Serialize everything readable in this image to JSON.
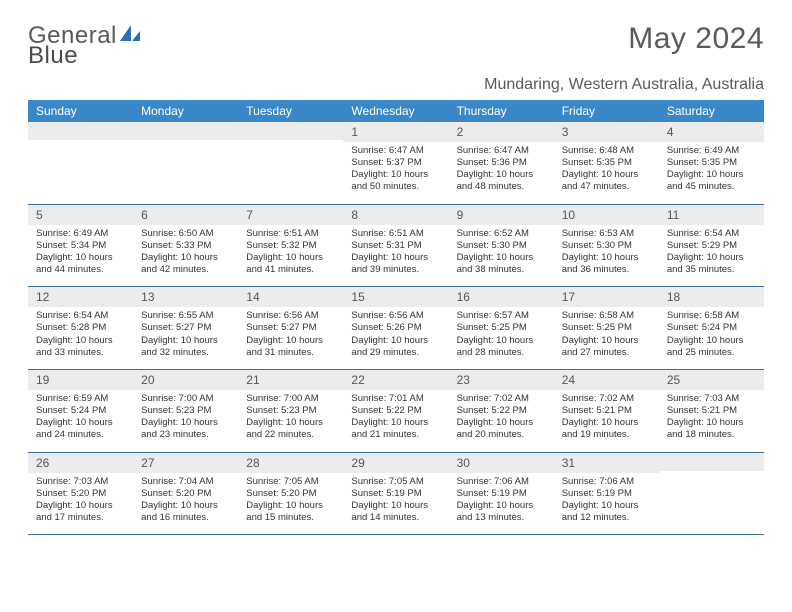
{
  "logo": {
    "word1": "General",
    "word2": "Blue"
  },
  "title": "May 2024",
  "location": "Mundaring, Western Australia, Australia",
  "colors": {
    "dow_bg": "#3a87c8",
    "dow_fg": "#ffffff",
    "daynum_bg": "#ececec",
    "row_border": "#3a6fa0",
    "text": "#333333",
    "heading": "#5a5a5a"
  },
  "day_labels": [
    "Sunday",
    "Monday",
    "Tuesday",
    "Wednesday",
    "Thursday",
    "Friday",
    "Saturday"
  ],
  "weeks": [
    [
      {
        "n": "",
        "lines": []
      },
      {
        "n": "",
        "lines": []
      },
      {
        "n": "",
        "lines": []
      },
      {
        "n": "1",
        "lines": [
          "Sunrise: 6:47 AM",
          "Sunset: 5:37 PM",
          "Daylight: 10 hours",
          "and 50 minutes."
        ]
      },
      {
        "n": "2",
        "lines": [
          "Sunrise: 6:47 AM",
          "Sunset: 5:36 PM",
          "Daylight: 10 hours",
          "and 48 minutes."
        ]
      },
      {
        "n": "3",
        "lines": [
          "Sunrise: 6:48 AM",
          "Sunset: 5:35 PM",
          "Daylight: 10 hours",
          "and 47 minutes."
        ]
      },
      {
        "n": "4",
        "lines": [
          "Sunrise: 6:49 AM",
          "Sunset: 5:35 PM",
          "Daylight: 10 hours",
          "and 45 minutes."
        ]
      }
    ],
    [
      {
        "n": "5",
        "lines": [
          "Sunrise: 6:49 AM",
          "Sunset: 5:34 PM",
          "Daylight: 10 hours",
          "and 44 minutes."
        ]
      },
      {
        "n": "6",
        "lines": [
          "Sunrise: 6:50 AM",
          "Sunset: 5:33 PM",
          "Daylight: 10 hours",
          "and 42 minutes."
        ]
      },
      {
        "n": "7",
        "lines": [
          "Sunrise: 6:51 AM",
          "Sunset: 5:32 PM",
          "Daylight: 10 hours",
          "and 41 minutes."
        ]
      },
      {
        "n": "8",
        "lines": [
          "Sunrise: 6:51 AM",
          "Sunset: 5:31 PM",
          "Daylight: 10 hours",
          "and 39 minutes."
        ]
      },
      {
        "n": "9",
        "lines": [
          "Sunrise: 6:52 AM",
          "Sunset: 5:30 PM",
          "Daylight: 10 hours",
          "and 38 minutes."
        ]
      },
      {
        "n": "10",
        "lines": [
          "Sunrise: 6:53 AM",
          "Sunset: 5:30 PM",
          "Daylight: 10 hours",
          "and 36 minutes."
        ]
      },
      {
        "n": "11",
        "lines": [
          "Sunrise: 6:54 AM",
          "Sunset: 5:29 PM",
          "Daylight: 10 hours",
          "and 35 minutes."
        ]
      }
    ],
    [
      {
        "n": "12",
        "lines": [
          "Sunrise: 6:54 AM",
          "Sunset: 5:28 PM",
          "Daylight: 10 hours",
          "and 33 minutes."
        ]
      },
      {
        "n": "13",
        "lines": [
          "Sunrise: 6:55 AM",
          "Sunset: 5:27 PM",
          "Daylight: 10 hours",
          "and 32 minutes."
        ]
      },
      {
        "n": "14",
        "lines": [
          "Sunrise: 6:56 AM",
          "Sunset: 5:27 PM",
          "Daylight: 10 hours",
          "and 31 minutes."
        ]
      },
      {
        "n": "15",
        "lines": [
          "Sunrise: 6:56 AM",
          "Sunset: 5:26 PM",
          "Daylight: 10 hours",
          "and 29 minutes."
        ]
      },
      {
        "n": "16",
        "lines": [
          "Sunrise: 6:57 AM",
          "Sunset: 5:25 PM",
          "Daylight: 10 hours",
          "and 28 minutes."
        ]
      },
      {
        "n": "17",
        "lines": [
          "Sunrise: 6:58 AM",
          "Sunset: 5:25 PM",
          "Daylight: 10 hours",
          "and 27 minutes."
        ]
      },
      {
        "n": "18",
        "lines": [
          "Sunrise: 6:58 AM",
          "Sunset: 5:24 PM",
          "Daylight: 10 hours",
          "and 25 minutes."
        ]
      }
    ],
    [
      {
        "n": "19",
        "lines": [
          "Sunrise: 6:59 AM",
          "Sunset: 5:24 PM",
          "Daylight: 10 hours",
          "and 24 minutes."
        ]
      },
      {
        "n": "20",
        "lines": [
          "Sunrise: 7:00 AM",
          "Sunset: 5:23 PM",
          "Daylight: 10 hours",
          "and 23 minutes."
        ]
      },
      {
        "n": "21",
        "lines": [
          "Sunrise: 7:00 AM",
          "Sunset: 5:23 PM",
          "Daylight: 10 hours",
          "and 22 minutes."
        ]
      },
      {
        "n": "22",
        "lines": [
          "Sunrise: 7:01 AM",
          "Sunset: 5:22 PM",
          "Daylight: 10 hours",
          "and 21 minutes."
        ]
      },
      {
        "n": "23",
        "lines": [
          "Sunrise: 7:02 AM",
          "Sunset: 5:22 PM",
          "Daylight: 10 hours",
          "and 20 minutes."
        ]
      },
      {
        "n": "24",
        "lines": [
          "Sunrise: 7:02 AM",
          "Sunset: 5:21 PM",
          "Daylight: 10 hours",
          "and 19 minutes."
        ]
      },
      {
        "n": "25",
        "lines": [
          "Sunrise: 7:03 AM",
          "Sunset: 5:21 PM",
          "Daylight: 10 hours",
          "and 18 minutes."
        ]
      }
    ],
    [
      {
        "n": "26",
        "lines": [
          "Sunrise: 7:03 AM",
          "Sunset: 5:20 PM",
          "Daylight: 10 hours",
          "and 17 minutes."
        ]
      },
      {
        "n": "27",
        "lines": [
          "Sunrise: 7:04 AM",
          "Sunset: 5:20 PM",
          "Daylight: 10 hours",
          "and 16 minutes."
        ]
      },
      {
        "n": "28",
        "lines": [
          "Sunrise: 7:05 AM",
          "Sunset: 5:20 PM",
          "Daylight: 10 hours",
          "and 15 minutes."
        ]
      },
      {
        "n": "29",
        "lines": [
          "Sunrise: 7:05 AM",
          "Sunset: 5:19 PM",
          "Daylight: 10 hours",
          "and 14 minutes."
        ]
      },
      {
        "n": "30",
        "lines": [
          "Sunrise: 7:06 AM",
          "Sunset: 5:19 PM",
          "Daylight: 10 hours",
          "and 13 minutes."
        ]
      },
      {
        "n": "31",
        "lines": [
          "Sunrise: 7:06 AM",
          "Sunset: 5:19 PM",
          "Daylight: 10 hours",
          "and 12 minutes."
        ]
      },
      {
        "n": "",
        "lines": []
      }
    ]
  ]
}
